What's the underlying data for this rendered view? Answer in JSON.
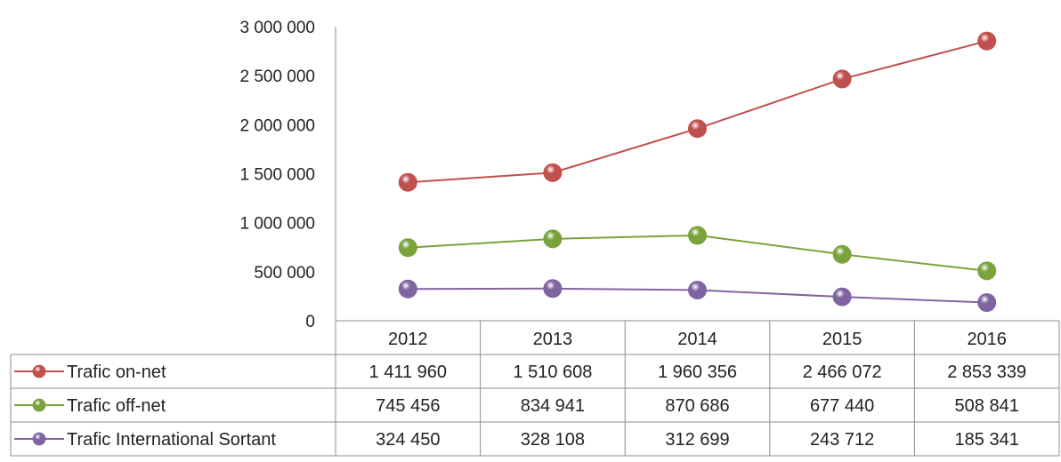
{
  "chart_data": {
    "type": "line",
    "categories": [
      "2012",
      "2013",
      "2014",
      "2015",
      "2016"
    ],
    "series": [
      {
        "name": "Trafic on-net",
        "color": "#C0504D",
        "values": [
          1411960,
          1510608,
          1960356,
          2466072,
          2853339
        ],
        "labels": [
          "1 411 960",
          "1 510 608",
          "1 960 356",
          "2 466 072",
          "2 853 339"
        ]
      },
      {
        "name": "Trafic off-net",
        "color": "#7AA33C",
        "values": [
          745456,
          834941,
          870686,
          677440,
          508841
        ],
        "labels": [
          "745 456",
          "834 941",
          "870 686",
          "677 440",
          "508 841"
        ]
      },
      {
        "name": "Trafic International Sortant",
        "color": "#8064A2",
        "values": [
          324450,
          328108,
          312699,
          243712,
          185341
        ],
        "labels": [
          "324 450",
          "328 108",
          "312 699",
          "243 712",
          "185 341"
        ]
      }
    ],
    "ylim": [
      0,
      3000000
    ],
    "yticks": [
      0,
      500000,
      1000000,
      1500000,
      2000000,
      2500000,
      3000000
    ],
    "ytick_labels": [
      "0",
      "500 000",
      "1 000 000",
      "1 500 000",
      "2 000 000",
      "2 500 000",
      "3 000 000"
    ],
    "grid": false,
    "legend": "data-table"
  }
}
